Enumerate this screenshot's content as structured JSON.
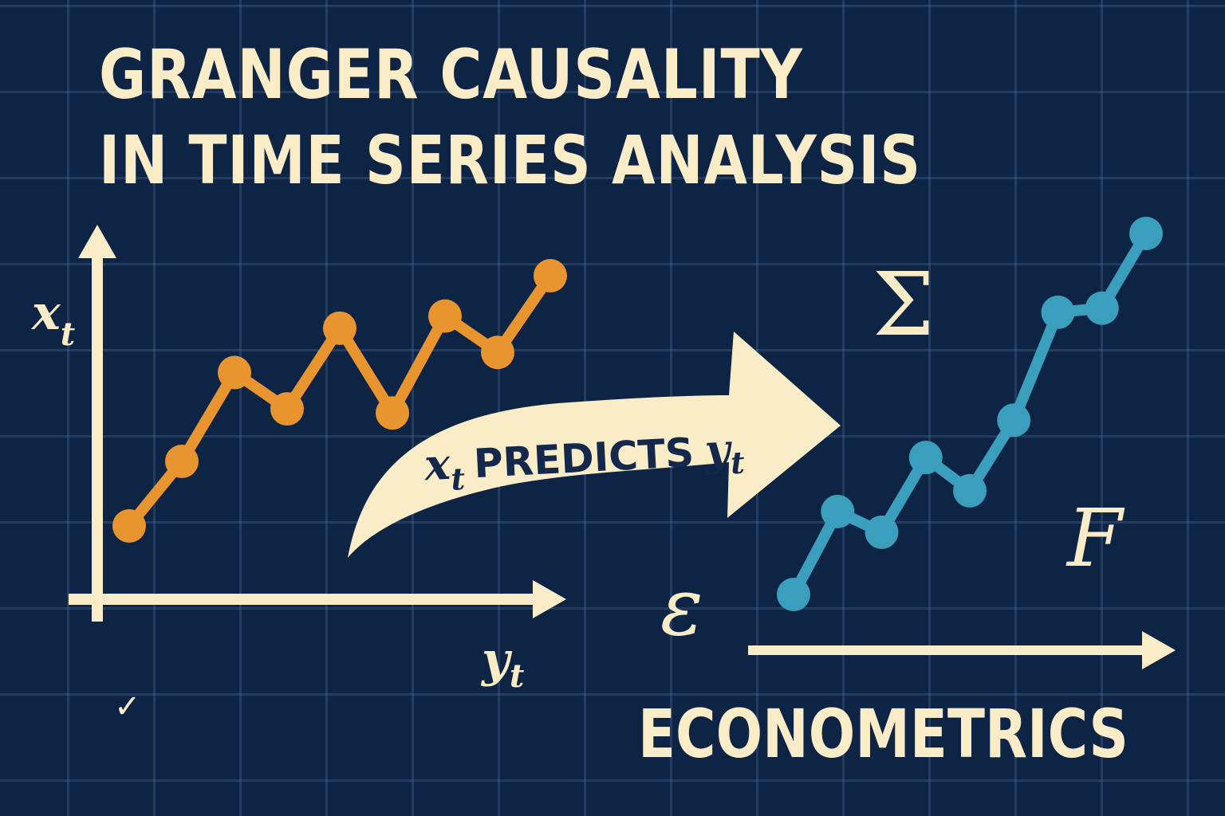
{
  "title": {
    "line1": "GRANGER CAUSALITY",
    "line2": "IN TIME SERIES ANALYSIS"
  },
  "left_chart": {
    "y_axis_label": {
      "var": "x",
      "sub": "t"
    },
    "x_axis_label": {
      "var": "y",
      "sub": "t"
    },
    "series_color": "#e9952f",
    "values": [
      2,
      3.6,
      5.8,
      4.9,
      6.9,
      4.8,
      7.2,
      6.3,
      8.2
    ]
  },
  "arrow": {
    "var_left": "x",
    "sub_left": "t",
    "word": "PREDICTS",
    "var_right": "y",
    "sub_right": "t"
  },
  "right_chart": {
    "series_color": "#3a9fbd",
    "values": [
      0.8,
      4.8,
      3.8,
      7.4,
      5.8,
      9.2,
      14.4,
      14.6,
      18.2
    ],
    "symbols": {
      "sigma": "Σ",
      "f": "F",
      "epsilon": "ε"
    }
  },
  "footer": {
    "label": "ECONOMETRICS",
    "check": "✓"
  },
  "colors": {
    "background": "#0e2444",
    "cream": "#fbecc8",
    "orange": "#e9952f",
    "teal": "#3a9fbd"
  }
}
